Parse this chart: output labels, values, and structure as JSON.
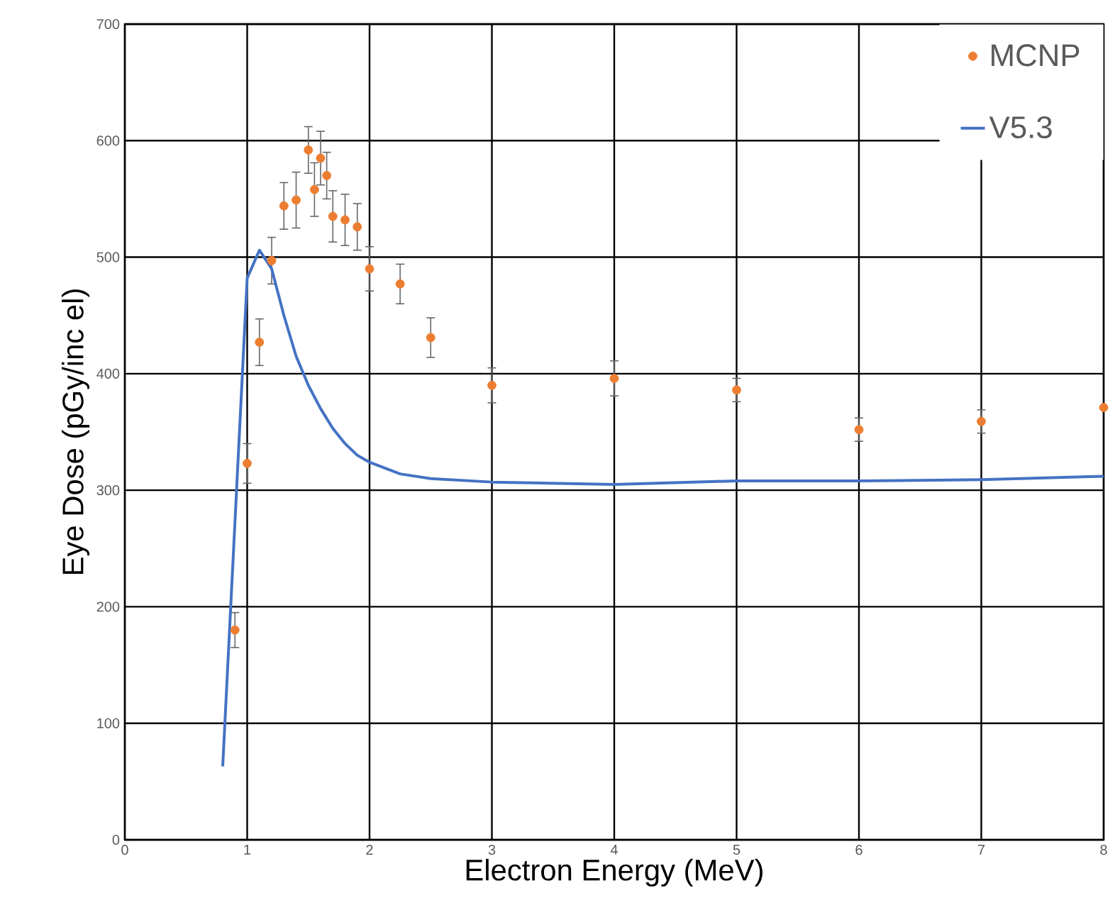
{
  "chart_data": {
    "type": "scatter",
    "xlabel": "Electron Energy (MeV)",
    "ylabel": "Eye Dose (pGy/inc el)",
    "xlim": [
      0,
      8
    ],
    "ylim": [
      0,
      700
    ],
    "xticks": [
      0,
      1,
      2,
      3,
      4,
      5,
      6,
      7,
      8
    ],
    "yticks": [
      0,
      100,
      200,
      300,
      400,
      500,
      600,
      700
    ],
    "grid": true,
    "legend": "top right",
    "series": [
      {
        "name": "MCNP",
        "marker": "circle",
        "color": "#ed7d31",
        "x": [
          0.9,
          1.0,
          1.1,
          1.2,
          1.3,
          1.4,
          1.5,
          1.55,
          1.6,
          1.65,
          1.7,
          1.8,
          1.9,
          2.0,
          2.25,
          2.5,
          3,
          4,
          5,
          6,
          7,
          8
        ],
        "values": [
          180,
          323,
          427,
          497,
          544,
          549,
          592,
          558,
          585,
          570,
          535,
          532,
          526,
          490,
          477,
          431,
          390,
          396,
          386,
          352,
          359,
          371
        ],
        "errors": [
          15,
          17,
          20,
          20,
          20,
          24,
          20,
          23,
          23,
          20,
          22,
          22,
          20,
          19,
          17,
          17,
          15,
          15,
          10,
          10,
          10,
          null
        ]
      },
      {
        "name": "V5.3",
        "type": "line",
        "marker": "none",
        "line_style": "solid",
        "color": "#4472c4",
        "x": [
          0.8,
          1.0,
          1.1,
          1.2,
          1.3,
          1.4,
          1.5,
          1.6,
          1.7,
          1.8,
          1.9,
          2.0,
          2.25,
          2.5,
          3,
          4,
          5,
          6,
          7,
          8
        ],
        "values": [
          63,
          482,
          506,
          490,
          450,
          415,
          390,
          370,
          353,
          340,
          330,
          324,
          314,
          310,
          307,
          305,
          308,
          308,
          309,
          312
        ]
      }
    ]
  }
}
